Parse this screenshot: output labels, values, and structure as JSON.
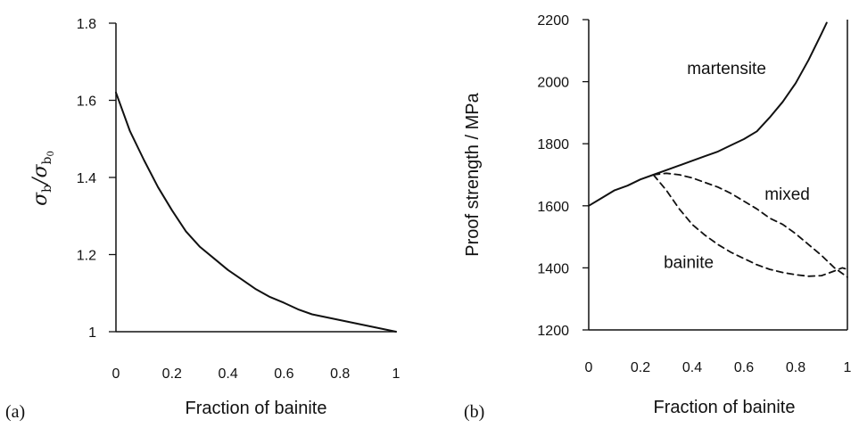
{
  "panels": {
    "a": {
      "label": "(a)"
    },
    "b": {
      "label": "(b)"
    }
  },
  "chart_data": [
    {
      "type": "line",
      "panel": "a",
      "title": "",
      "xlabel": "Fraction of bainite",
      "ylabel": "σb/σb0",
      "ylabel_parts": {
        "sym": "σ",
        "sub1": "b",
        "sep": "/",
        "sub2": "b",
        "subsub": "0"
      },
      "xlim": [
        0,
        1
      ],
      "ylim": [
        1,
        1.8
      ],
      "xticks": [
        0,
        0.2,
        0.4,
        0.6,
        0.8,
        1
      ],
      "xtick_labels": [
        "0",
        "0.2",
        "0.4",
        "0.6",
        "0.8",
        "1"
      ],
      "yticks": [
        1,
        1.2,
        1.4,
        1.6,
        1.8
      ],
      "ytick_labels": [
        "1",
        "1.2",
        "1.4",
        "1.6",
        "1.8"
      ],
      "grid": false,
      "series": [
        {
          "style": "solid",
          "x": [
            0,
            0.05,
            0.1,
            0.15,
            0.2,
            0.25,
            0.3,
            0.35,
            0.4,
            0.45,
            0.5,
            0.55,
            0.6,
            0.65,
            0.7,
            0.8,
            0.9,
            1.0
          ],
          "y": [
            1.62,
            1.52,
            1.445,
            1.375,
            1.315,
            1.26,
            1.22,
            1.19,
            1.16,
            1.135,
            1.11,
            1.09,
            1.075,
            1.058,
            1.045,
            1.03,
            1.015,
            1.0
          ]
        }
      ]
    },
    {
      "type": "line",
      "panel": "b",
      "title": "",
      "xlabel": "Fraction of bainite",
      "ylabel": "Proof strength / MPa",
      "xlim": [
        0,
        1
      ],
      "ylim": [
        1200,
        2200
      ],
      "xticks": [
        0,
        0.2,
        0.4,
        0.6,
        0.8,
        1
      ],
      "xtick_labels": [
        "0",
        "0.2",
        "0.4",
        "0.6",
        "0.8",
        "1"
      ],
      "yticks": [
        1200,
        1400,
        1600,
        1800,
        2000,
        2200
      ],
      "ytick_labels": [
        "1200",
        "1400",
        "1600",
        "1800",
        "2000",
        "2200"
      ],
      "grid": false,
      "annotations": [
        {
          "text": "martensite",
          "x": 0.38,
          "y": 2025
        },
        {
          "text": "mixed",
          "x": 0.68,
          "y": 1620
        },
        {
          "text": "bainite",
          "x": 0.29,
          "y": 1400
        }
      ],
      "series": [
        {
          "style": "solid",
          "x": [
            0,
            0.05,
            0.1,
            0.15,
            0.2,
            0.25,
            0.3,
            0.35,
            0.4,
            0.45,
            0.5,
            0.55,
            0.6,
            0.65,
            0.7,
            0.75,
            0.8,
            0.85,
            0.9,
            0.92
          ],
          "y": [
            1600,
            1625,
            1650,
            1665,
            1685,
            1700,
            1715,
            1730,
            1745,
            1760,
            1775,
            1795,
            1815,
            1840,
            1885,
            1935,
            1995,
            2070,
            2155,
            2190
          ]
        },
        {
          "style": "dashed",
          "x": [
            0.25,
            0.3,
            0.35,
            0.4,
            0.45,
            0.5,
            0.55,
            0.6,
            0.65,
            0.7,
            0.75,
            0.8,
            0.85,
            0.9,
            0.95,
            1.0
          ],
          "y": [
            1700,
            1705,
            1700,
            1690,
            1675,
            1660,
            1640,
            1615,
            1590,
            1560,
            1540,
            1510,
            1475,
            1440,
            1400,
            1370
          ]
        },
        {
          "style": "dashed",
          "x": [
            0.25,
            0.3,
            0.35,
            0.4,
            0.45,
            0.5,
            0.55,
            0.6,
            0.65,
            0.7,
            0.75,
            0.8,
            0.85,
            0.9,
            0.95,
            0.98,
            1.0
          ],
          "y": [
            1700,
            1650,
            1590,
            1540,
            1505,
            1475,
            1450,
            1430,
            1410,
            1395,
            1385,
            1378,
            1373,
            1375,
            1390,
            1400,
            1395
          ]
        }
      ]
    }
  ]
}
